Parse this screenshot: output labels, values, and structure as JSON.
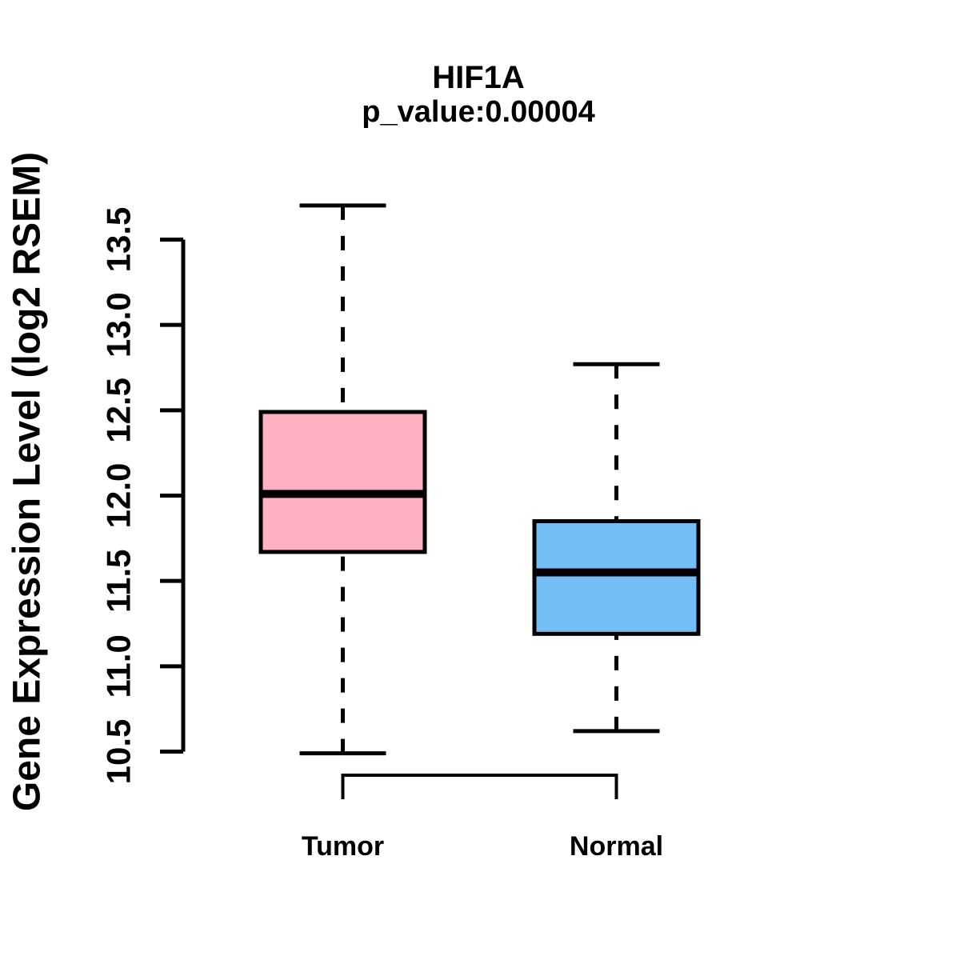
{
  "title": "HIF1A",
  "subtitle": "p_value:0.00004",
  "p_value": "0.00004",
  "colors": {
    "line": "#000000",
    "background": "#FFFFFF",
    "tumor_fill": "#FFB0C1",
    "normal_fill": "#74BEF8"
  },
  "chart_data": {
    "type": "boxplot",
    "title": "HIF1A",
    "subtitle": "p_value:0.00004",
    "ylabel": "Gene Expression Level (log2 RSEM)",
    "xlabel": "",
    "categories": [
      "Tumor",
      "Normal"
    ],
    "yticks": [
      "10.5",
      "11.0",
      "11.5",
      "12.0",
      "12.5",
      "13.0",
      "13.5"
    ],
    "ylim": [
      10.4,
      13.8
    ],
    "grid": false,
    "legend": "none",
    "whisker_style": "dashed",
    "series": [
      {
        "name": "Tumor",
        "fill": "#FFB0C1",
        "lower_whisker": 10.49,
        "q1": 11.67,
        "median": 12.01,
        "q3": 12.49,
        "upper_whisker": 13.7
      },
      {
        "name": "Normal",
        "fill": "#74BEF8",
        "lower_whisker": 10.62,
        "q1": 11.19,
        "median": 11.55,
        "q3": 11.85,
        "upper_whisker": 12.77
      }
    ]
  }
}
